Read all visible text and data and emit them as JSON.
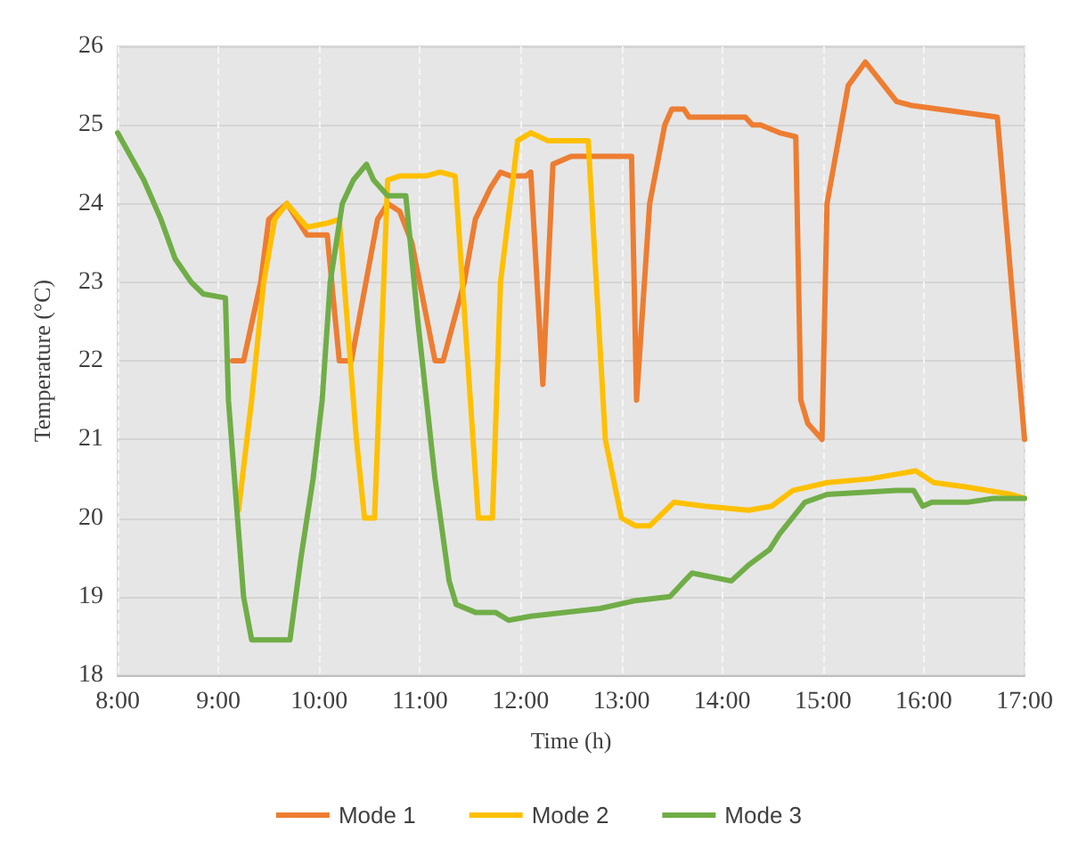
{
  "chart_data": {
    "type": "line",
    "xlabel": "Time (h)",
    "ylabel": "Temperature (°C)",
    "xlim": [
      8,
      17
    ],
    "ylim": [
      18,
      26
    ],
    "xticks": [
      {
        "value": 8,
        "label": "8:00"
      },
      {
        "value": 9,
        "label": "9:00"
      },
      {
        "value": 10,
        "label": "10:00"
      },
      {
        "value": 11,
        "label": "11:00"
      },
      {
        "value": 12,
        "label": "12:00"
      },
      {
        "value": 13,
        "label": "13:00"
      },
      {
        "value": 14,
        "label": "14:00"
      },
      {
        "value": 15,
        "label": "15:00"
      },
      {
        "value": 16,
        "label": "16:00"
      },
      {
        "value": 17,
        "label": "17:00"
      }
    ],
    "yticks": [
      18,
      19,
      20,
      21,
      22,
      23,
      24,
      25,
      26
    ],
    "grid": true,
    "legend": "bottom",
    "marker": "none",
    "line_style": "solid",
    "series": [
      {
        "name": "Mode 1",
        "color": "#ed7d31",
        "x": [
          9.14,
          9.25,
          9.42,
          9.5,
          9.68,
          9.88,
          10.08,
          10.2,
          10.32,
          10.58,
          10.68,
          10.8,
          10.92,
          11.15,
          11.23,
          11.44,
          11.55,
          11.7,
          11.8,
          11.9,
          12.05,
          12.1,
          12.22,
          12.32,
          12.5,
          13.1,
          13.15,
          13.28,
          13.43,
          13.5,
          13.62,
          13.67,
          14.23,
          14.3,
          14.38,
          14.57,
          14.73,
          14.78,
          14.85,
          14.99,
          15.04,
          15.25,
          15.42,
          15.73,
          15.87,
          16.73,
          17.0
        ],
        "values": [
          22.0,
          22.0,
          23.0,
          23.8,
          24.0,
          23.6,
          23.6,
          22.0,
          22.0,
          23.8,
          24.0,
          23.9,
          23.5,
          22.0,
          22.0,
          23.0,
          23.8,
          24.2,
          24.4,
          24.35,
          24.35,
          24.4,
          21.7,
          24.5,
          24.6,
          24.6,
          21.5,
          24.0,
          25.0,
          25.2,
          25.2,
          25.1,
          25.1,
          25.0,
          25.0,
          24.9,
          24.85,
          21.5,
          21.2,
          21.0,
          24.0,
          25.5,
          25.8,
          25.3,
          25.25,
          25.1,
          21.0
        ]
      },
      {
        "name": "Mode 2",
        "color": "#ffc000",
        "x": [
          9.2,
          9.33,
          9.45,
          9.56,
          9.68,
          9.88,
          10.08,
          10.2,
          10.37,
          10.45,
          10.55,
          10.68,
          10.8,
          11.06,
          11.2,
          11.35,
          11.58,
          11.72,
          11.8,
          11.97,
          12.1,
          12.27,
          12.67,
          12.84,
          13.0,
          13.14,
          13.28,
          13.52,
          13.83,
          14.26,
          14.49,
          14.7,
          15.04,
          15.47,
          15.92,
          16.1,
          16.4,
          16.87,
          17.0
        ],
        "values": [
          20.1,
          21.5,
          23.0,
          23.8,
          24.0,
          23.7,
          23.75,
          23.8,
          21.0,
          20.0,
          20.0,
          24.3,
          24.35,
          24.35,
          24.4,
          24.35,
          20.0,
          20.0,
          23.0,
          24.8,
          24.9,
          24.8,
          24.8,
          21.0,
          20.0,
          19.9,
          19.9,
          20.2,
          20.15,
          20.1,
          20.15,
          20.35,
          20.45,
          20.5,
          20.6,
          20.45,
          20.4,
          20.3,
          20.25
        ]
      },
      {
        "name": "Mode 3",
        "color": "#70ad47",
        "x": [
          8.0,
          8.26,
          8.43,
          8.57,
          8.73,
          8.85,
          9.07,
          9.1,
          9.25,
          9.33,
          9.71,
          9.82,
          9.94,
          10.03,
          10.11,
          10.23,
          10.34,
          10.47,
          10.54,
          10.68,
          10.86,
          10.98,
          11.15,
          11.29,
          11.36,
          11.55,
          11.75,
          11.88,
          12.1,
          12.79,
          13.14,
          13.48,
          13.7,
          14.09,
          14.26,
          14.47,
          14.57,
          14.82,
          15.04,
          15.73,
          15.9,
          15.99,
          16.08,
          16.43,
          16.69,
          17.0
        ],
        "values": [
          24.9,
          24.3,
          23.8,
          23.3,
          23.0,
          22.85,
          22.8,
          21.5,
          19.0,
          18.45,
          18.45,
          19.5,
          20.5,
          21.5,
          23.0,
          24.0,
          24.3,
          24.5,
          24.3,
          24.1,
          24.1,
          22.5,
          20.5,
          19.2,
          18.9,
          18.8,
          18.8,
          18.7,
          18.75,
          18.85,
          18.95,
          19.0,
          19.3,
          19.2,
          19.4,
          19.6,
          19.8,
          20.2,
          20.3,
          20.35,
          20.35,
          20.15,
          20.2,
          20.2,
          20.25,
          20.25
        ]
      }
    ]
  }
}
